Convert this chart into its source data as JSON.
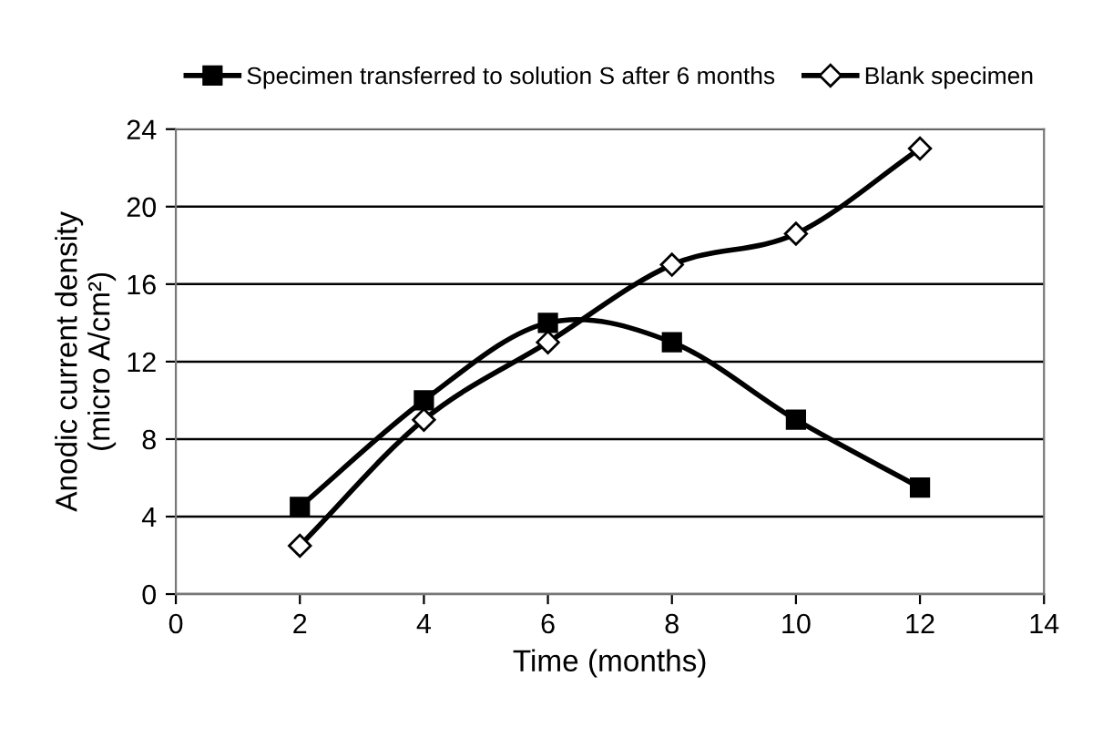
{
  "chart_data": {
    "type": "line",
    "xlabel": "Time (months)",
    "ylabel": "Anodic current density\n(micro A/cm²)",
    "x": [
      2,
      4,
      6,
      8,
      10,
      12
    ],
    "xlim": [
      0,
      14
    ],
    "xticks": [
      0,
      2,
      4,
      6,
      8,
      10,
      12,
      14
    ],
    "ylim": [
      0,
      24
    ],
    "yticks": [
      0,
      4,
      8,
      12,
      16,
      20,
      24
    ],
    "grid": "y",
    "legend": "top",
    "line_style": "solid",
    "series": [
      {
        "name": "Specimen transferred to solution S after 6 months",
        "color": "#000000",
        "marker": "square",
        "values": [
          4.5,
          10,
          14,
          13,
          9,
          5.5
        ]
      },
      {
        "name": "Blank specimen",
        "color": "#000000",
        "marker": "diamond",
        "values": [
          2.5,
          9,
          13,
          17,
          18.6,
          23
        ]
      }
    ]
  }
}
